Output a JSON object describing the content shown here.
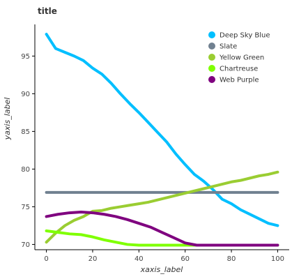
{
  "chart_data": {
    "type": "line",
    "title": "title",
    "xlabel": "xaxis_label",
    "ylabel": "yaxis_label",
    "xlim": [
      -5,
      105
    ],
    "ylim": [
      69.3,
      99.2
    ],
    "x_ticks": [
      0,
      20,
      40,
      60,
      80,
      100
    ],
    "y_ticks": [
      70,
      75,
      80,
      85,
      90,
      95
    ],
    "grid": false,
    "legend_position": "top-right",
    "series": [
      {
        "name": "Deep Sky Blue",
        "color": "#00BFFF",
        "x": [
          0,
          4,
          8,
          12,
          16,
          20,
          24,
          28,
          32,
          36,
          40,
          44,
          48,
          52,
          56,
          60,
          64,
          68,
          72,
          76,
          80,
          84,
          88,
          92,
          96,
          100
        ],
        "y": [
          97.9,
          96.0,
          95.5,
          95.0,
          94.4,
          93.4,
          92.6,
          91.4,
          90.0,
          88.7,
          87.5,
          86.2,
          84.9,
          83.6,
          82.0,
          80.6,
          79.3,
          78.4,
          77.3,
          76.0,
          75.4,
          74.6,
          74.0,
          73.4,
          72.8,
          72.5
        ]
      },
      {
        "name": "Slate",
        "color": "#708090",
        "x": [
          0,
          10,
          20,
          30,
          40,
          50,
          60,
          70,
          80,
          90,
          100
        ],
        "y": [
          76.9,
          76.9,
          76.9,
          76.9,
          76.9,
          76.9,
          76.9,
          76.9,
          76.9,
          76.9,
          76.9
        ]
      },
      {
        "name": "Yellow Green",
        "color": "#9ACD32",
        "x": [
          0,
          4,
          8,
          12,
          16,
          20,
          24,
          28,
          32,
          36,
          40,
          44,
          48,
          52,
          56,
          60,
          64,
          68,
          72,
          76,
          80,
          84,
          88,
          92,
          96,
          100
        ],
        "y": [
          70.3,
          71.5,
          72.5,
          73.2,
          73.7,
          74.4,
          74.5,
          74.8,
          75.0,
          75.2,
          75.4,
          75.6,
          75.9,
          76.2,
          76.5,
          76.8,
          77.1,
          77.4,
          77.7,
          78.0,
          78.3,
          78.5,
          78.8,
          79.1,
          79.3,
          79.6
        ]
      },
      {
        "name": "Chartreuse",
        "color": "#7FFF00",
        "x": [
          0,
          5,
          10,
          15,
          20,
          25,
          30,
          35,
          40,
          45,
          50,
          55,
          60,
          65,
          70,
          75,
          80,
          85,
          90,
          95,
          100
        ],
        "y": [
          71.8,
          71.6,
          71.4,
          71.3,
          71.0,
          70.6,
          70.3,
          70.0,
          69.9,
          69.9,
          69.9,
          69.9,
          69.9,
          69.9,
          69.9,
          69.9,
          69.9,
          69.9,
          69.9,
          69.9,
          69.9
        ]
      },
      {
        "name": "Web Purple",
        "color": "#7F007F",
        "x": [
          0,
          5,
          10,
          15,
          20,
          25,
          30,
          35,
          40,
          45,
          50,
          55,
          60,
          65,
          70,
          75,
          80,
          85,
          90,
          95,
          100
        ],
        "y": [
          73.7,
          74.0,
          74.2,
          74.3,
          74.2,
          74.0,
          73.7,
          73.3,
          72.8,
          72.3,
          71.6,
          70.9,
          70.2,
          69.9,
          69.9,
          69.9,
          69.9,
          69.9,
          69.9,
          69.9,
          69.9
        ]
      }
    ]
  }
}
